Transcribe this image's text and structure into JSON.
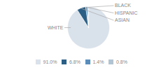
{
  "chart_data": {
    "type": "pie",
    "categories": [
      "WHITE",
      "ASIAN",
      "HISPANIC",
      "BLACK"
    ],
    "values": [
      91.0,
      6.8,
      1.4,
      0.8
    ],
    "value_labels": [
      "91.0%",
      "6.8%",
      "1.4%",
      "0.8%"
    ],
    "colors": [
      "#d9e1ea",
      "#2d5f85",
      "#5b8db8",
      "#b0c4d4"
    ],
    "legend": "bottom"
  }
}
